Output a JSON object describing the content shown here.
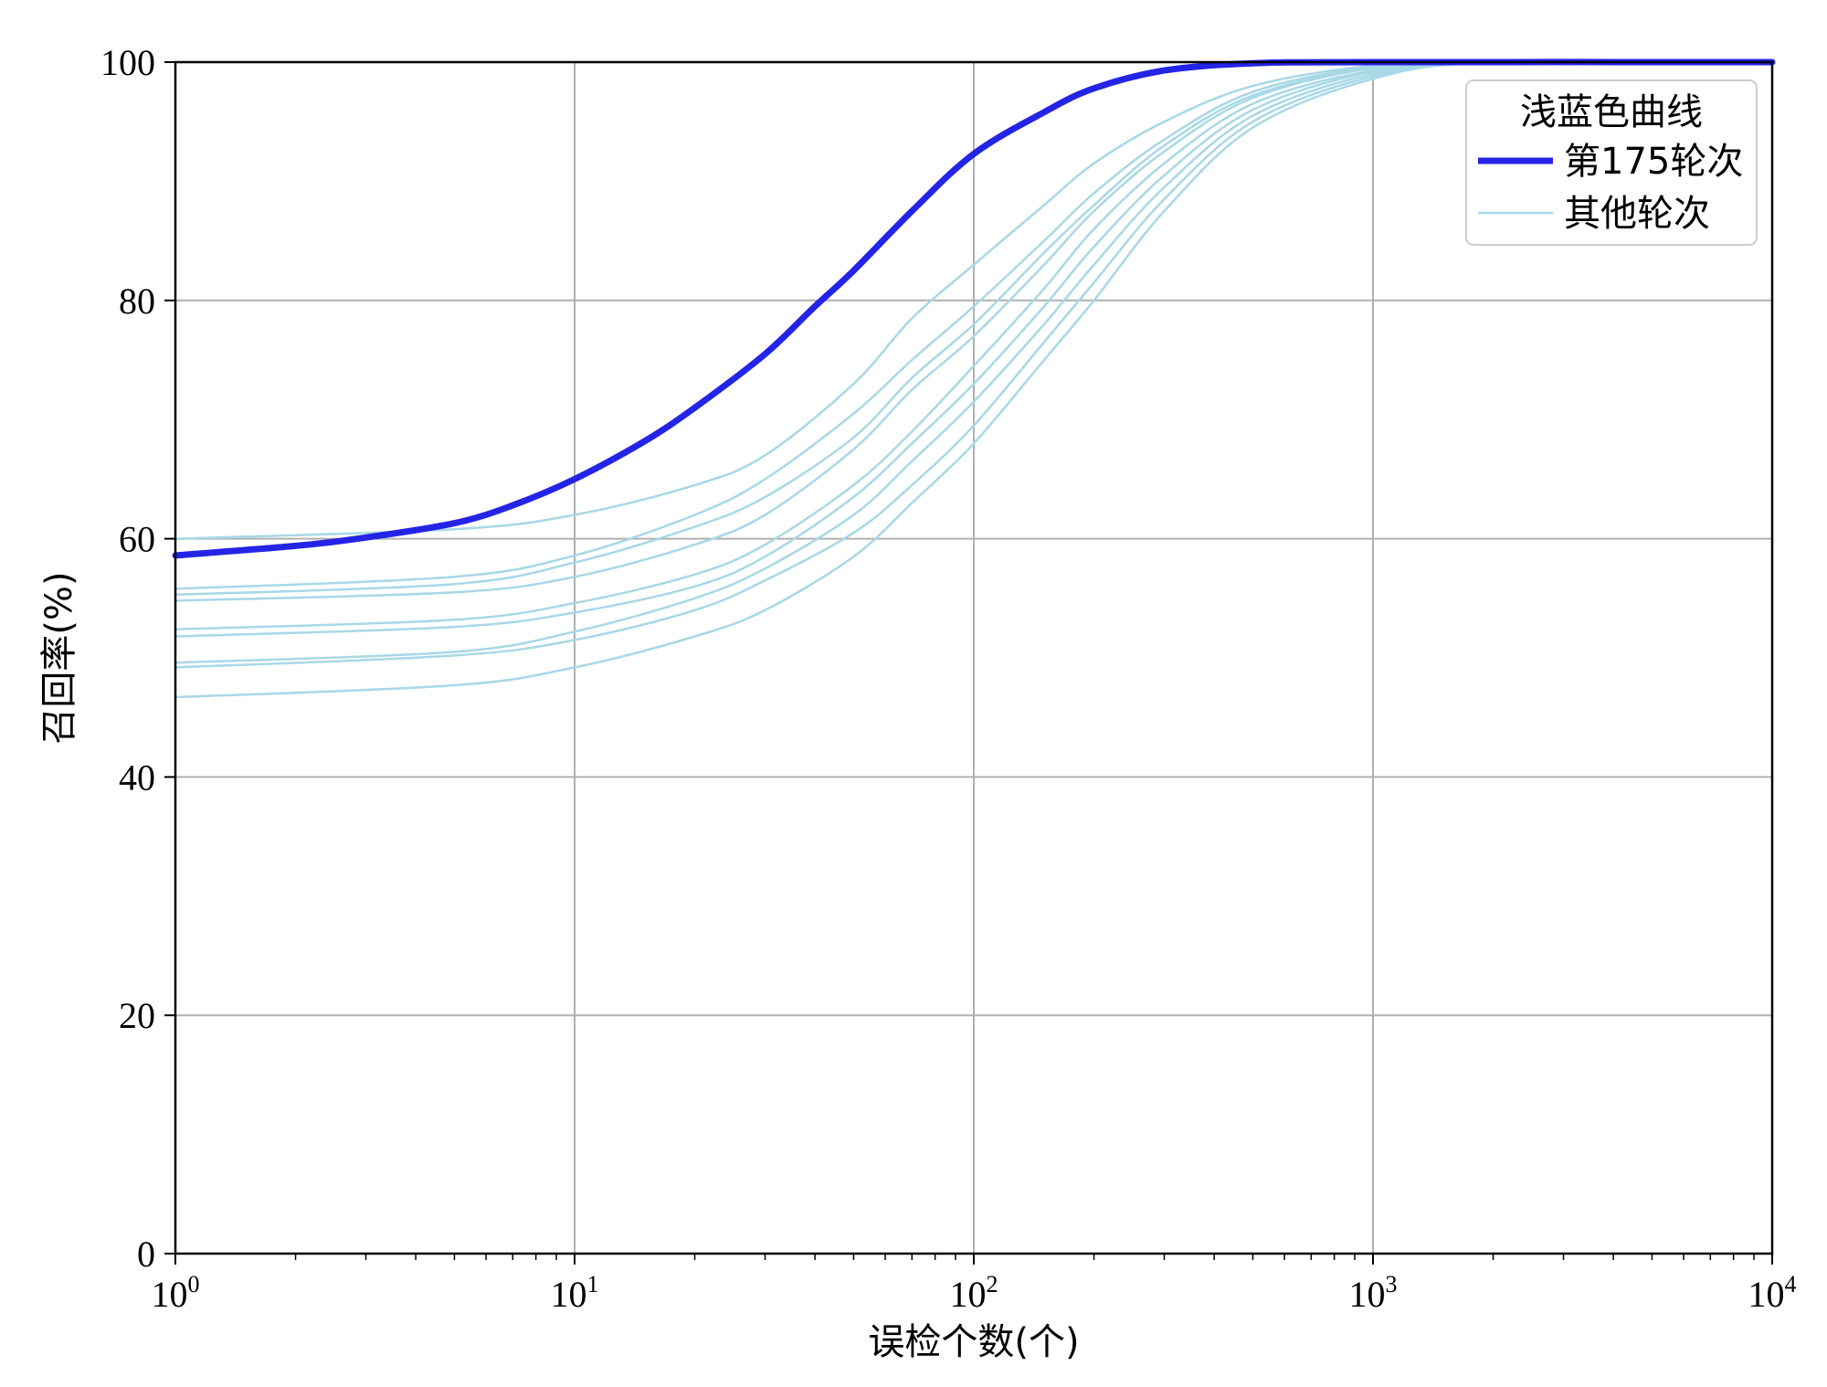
{
  "chart_data": {
    "type": "line",
    "x_scale": "log",
    "xlim": [
      1,
      10000
    ],
    "ylim": [
      0,
      100
    ],
    "x_ticks": [
      {
        "base": "10",
        "exp": "0",
        "value": 1
      },
      {
        "base": "10",
        "exp": "1",
        "value": 10
      },
      {
        "base": "10",
        "exp": "2",
        "value": 100
      },
      {
        "base": "10",
        "exp": "3",
        "value": 1000
      },
      {
        "base": "10",
        "exp": "4",
        "value": 10000
      }
    ],
    "y_ticks": [
      "0",
      "20",
      "40",
      "60",
      "80",
      "100"
    ],
    "xlabel": "误检个数(个)",
    "ylabel": "召回率(%)",
    "grid": true,
    "legend": {
      "title": "浅蓝色曲线",
      "placement": "top-right",
      "entries": [
        "第175轮次",
        "其他轮次"
      ]
    },
    "colors": {
      "highlight": "#2424e6",
      "others": "#a8d8e6",
      "grid": "#b0b0b0"
    },
    "series": [
      {
        "name": "第175轮次",
        "role": "highlight",
        "points": [
          [
            1,
            58.6
          ],
          [
            2,
            59.4
          ],
          [
            3,
            60.1
          ],
          [
            5,
            61.3
          ],
          [
            7,
            62.8
          ],
          [
            10,
            65.0
          ],
          [
            15,
            68.2
          ],
          [
            20,
            71.0
          ],
          [
            30,
            75.5
          ],
          [
            40,
            79.5
          ],
          [
            50,
            82.5
          ],
          [
            70,
            87.5
          ],
          [
            100,
            92.3
          ],
          [
            150,
            95.8
          ],
          [
            200,
            97.8
          ],
          [
            300,
            99.3
          ],
          [
            500,
            99.9
          ],
          [
            1000,
            100
          ],
          [
            10000,
            100
          ]
        ]
      },
      {
        "role": "other",
        "points": [
          [
            1,
            60.0
          ],
          [
            5,
            60.8
          ],
          [
            10,
            62.0
          ],
          [
            20,
            64.5
          ],
          [
            30,
            67.0
          ],
          [
            50,
            73.0
          ],
          [
            70,
            78.5
          ],
          [
            100,
            83.0
          ],
          [
            150,
            88.0
          ],
          [
            200,
            91.5
          ],
          [
            300,
            95.0
          ],
          [
            500,
            98.0
          ],
          [
            1000,
            99.7
          ],
          [
            2000,
            100
          ],
          [
            10000,
            100
          ]
        ]
      },
      {
        "role": "other",
        "points": [
          [
            1,
            55.8
          ],
          [
            5,
            56.8
          ],
          [
            10,
            58.6
          ],
          [
            20,
            62.0
          ],
          [
            30,
            65.0
          ],
          [
            50,
            70.5
          ],
          [
            70,
            75.0
          ],
          [
            100,
            79.5
          ],
          [
            150,
            85.0
          ],
          [
            200,
            89.0
          ],
          [
            300,
            93.5
          ],
          [
            500,
            97.5
          ],
          [
            1000,
            99.6
          ],
          [
            2000,
            100
          ],
          [
            10000,
            100
          ]
        ]
      },
      {
        "role": "other",
        "points": [
          [
            1,
            55.3
          ],
          [
            5,
            56.2
          ],
          [
            10,
            58.0
          ],
          [
            20,
            61.0
          ],
          [
            30,
            63.5
          ],
          [
            50,
            68.5
          ],
          [
            70,
            73.5
          ],
          [
            100,
            78.0
          ],
          [
            150,
            84.0
          ],
          [
            200,
            88.0
          ],
          [
            300,
            93.0
          ],
          [
            500,
            97.2
          ],
          [
            1000,
            99.5
          ],
          [
            2000,
            100
          ],
          [
            10000,
            100
          ]
        ]
      },
      {
        "role": "other",
        "points": [
          [
            1,
            54.8
          ],
          [
            5,
            55.5
          ],
          [
            10,
            56.8
          ],
          [
            20,
            59.5
          ],
          [
            30,
            62.0
          ],
          [
            50,
            67.5
          ],
          [
            70,
            72.5
          ],
          [
            100,
            77.0
          ],
          [
            150,
            83.0
          ],
          [
            200,
            87.5
          ],
          [
            300,
            92.5
          ],
          [
            500,
            97.0
          ],
          [
            1000,
            99.5
          ],
          [
            2000,
            100
          ],
          [
            10000,
            100
          ]
        ]
      },
      {
        "role": "other",
        "points": [
          [
            1,
            52.4
          ],
          [
            5,
            53.2
          ],
          [
            10,
            54.6
          ],
          [
            20,
            57.0
          ],
          [
            30,
            59.5
          ],
          [
            50,
            64.5
          ],
          [
            70,
            69.0
          ],
          [
            100,
            74.5
          ],
          [
            150,
            81.0
          ],
          [
            200,
            86.0
          ],
          [
            300,
            91.5
          ],
          [
            500,
            96.5
          ],
          [
            1000,
            99.3
          ],
          [
            2000,
            100
          ],
          [
            10000,
            100
          ]
        ]
      },
      {
        "role": "other",
        "points": [
          [
            1,
            51.8
          ],
          [
            5,
            52.6
          ],
          [
            10,
            53.8
          ],
          [
            20,
            56.0
          ],
          [
            30,
            58.5
          ],
          [
            50,
            63.5
          ],
          [
            70,
            68.0
          ],
          [
            100,
            73.0
          ],
          [
            150,
            79.5
          ],
          [
            200,
            84.5
          ],
          [
            300,
            90.5
          ],
          [
            500,
            96.0
          ],
          [
            1000,
            99.2
          ],
          [
            2000,
            100
          ],
          [
            10000,
            100
          ]
        ]
      },
      {
        "role": "other",
        "points": [
          [
            1,
            49.6
          ],
          [
            5,
            50.5
          ],
          [
            10,
            52.2
          ],
          [
            20,
            55.0
          ],
          [
            30,
            57.5
          ],
          [
            50,
            62.0
          ],
          [
            70,
            66.5
          ],
          [
            100,
            71.5
          ],
          [
            150,
            78.0
          ],
          [
            200,
            83.0
          ],
          [
            300,
            89.5
          ],
          [
            500,
            95.5
          ],
          [
            1000,
            99.0
          ],
          [
            2000,
            100
          ],
          [
            10000,
            100
          ]
        ]
      },
      {
        "role": "other",
        "points": [
          [
            1,
            49.2
          ],
          [
            5,
            50.2
          ],
          [
            10,
            51.5
          ],
          [
            20,
            54.0
          ],
          [
            30,
            56.5
          ],
          [
            50,
            60.5
          ],
          [
            70,
            64.5
          ],
          [
            100,
            69.5
          ],
          [
            150,
            76.5
          ],
          [
            200,
            81.5
          ],
          [
            300,
            88.5
          ],
          [
            500,
            95.0
          ],
          [
            1000,
            98.8
          ],
          [
            2000,
            100
          ],
          [
            10000,
            100
          ]
        ]
      },
      {
        "role": "other",
        "points": [
          [
            1,
            46.7
          ],
          [
            5,
            47.7
          ],
          [
            10,
            49.2
          ],
          [
            20,
            51.8
          ],
          [
            30,
            54.0
          ],
          [
            50,
            58.5
          ],
          [
            70,
            63.0
          ],
          [
            100,
            68.0
          ],
          [
            150,
            75.0
          ],
          [
            200,
            80.0
          ],
          [
            300,
            87.5
          ],
          [
            500,
            94.5
          ],
          [
            1000,
            98.6
          ],
          [
            2000,
            100
          ],
          [
            10000,
            100
          ]
        ]
      }
    ]
  }
}
